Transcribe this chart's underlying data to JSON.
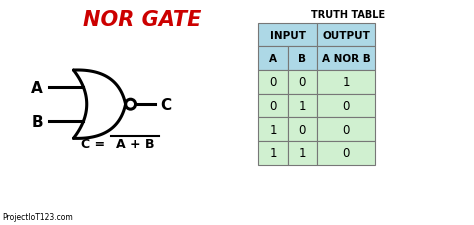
{
  "title": "NOR GATE",
  "title_color": "#cc0000",
  "title_fontsize": 15,
  "bg_color": "#ffffff",
  "truth_table_title": "TRUTH TABLE",
  "table_data": [
    [
      "0",
      "0",
      "1"
    ],
    [
      "0",
      "1",
      "0"
    ],
    [
      "1",
      "0",
      "0"
    ],
    [
      "1",
      "1",
      "0"
    ]
  ],
  "table_header_bg": "#add8e6",
  "table_row_bg": "#d0f0d0",
  "watermark": "ProjectIoT123.com",
  "input_a_label": "A",
  "input_b_label": "B",
  "output_label": "C"
}
